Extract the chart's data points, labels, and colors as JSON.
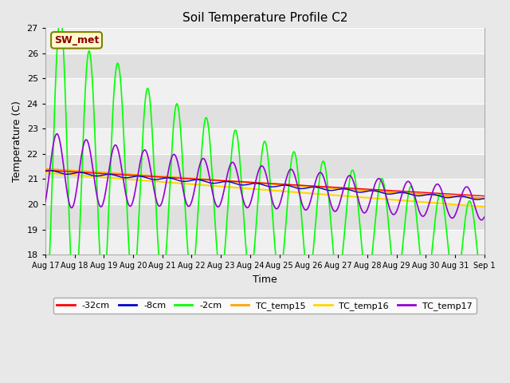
{
  "title": "Soil Temperature Profile C2",
  "xlabel": "Time",
  "ylabel": "Temperature (C)",
  "ylim": [
    18.0,
    27.0
  ],
  "yticks": [
    18.0,
    19.0,
    20.0,
    21.0,
    22.0,
    23.0,
    24.0,
    25.0,
    26.0,
    27.0
  ],
  "annotation": "SW_met",
  "annotation_color": "#8B0000",
  "annotation_bg": "#FFFACD",
  "annotation_border": "#808000",
  "line_colors": {
    "-32cm": "#FF0000",
    "-8cm": "#0000CD",
    "-2cm": "#00FF00",
    "TC_temp15": "#FFA500",
    "TC_temp16": "#FFD700",
    "TC_temp17": "#9400D3"
  },
  "fig_facecolor": "#E8E8E8",
  "plot_facecolor": "#FFFFFF",
  "band_color_light": "#F0F0F0",
  "band_color_dark": "#E0E0E0",
  "grid_color": "#CCCCCC"
}
